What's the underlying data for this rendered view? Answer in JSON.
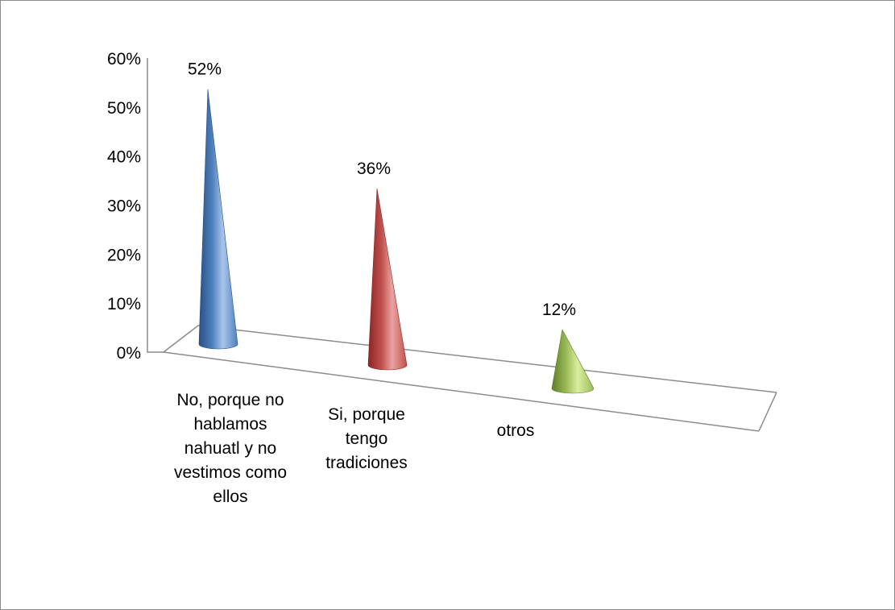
{
  "chart_data": {
    "type": "bar",
    "bar_shape": "cone",
    "three_d": true,
    "title": "",
    "xlabel": "",
    "ylabel": "",
    "ylim": [
      0,
      0.6
    ],
    "yticks": [
      0,
      0.1,
      0.2,
      0.3,
      0.4,
      0.5,
      0.6
    ],
    "ytick_labels": [
      "0%",
      "10%",
      "20%",
      "30%",
      "40%",
      "50%",
      "60%"
    ],
    "grid": false,
    "legend": "none",
    "categories": [
      [
        "No, porque no",
        "hablamos",
        "nahuatl y no",
        "vestimos como",
        "ellos"
      ],
      [
        "Si, porque",
        "tengo",
        "tradiciones"
      ],
      [
        "otros"
      ]
    ],
    "values": [
      0.52,
      0.36,
      0.12
    ],
    "data_labels": [
      "52%",
      "36%",
      "12%"
    ],
    "colors": {
      "bars": [
        "#4f81bd",
        "#c0504d",
        "#9bbb59"
      ],
      "bar_dark": [
        "#2a4f86",
        "#8a2624",
        "#5e7d28"
      ],
      "bar_light": [
        "#a9c4ea",
        "#eba3a1",
        "#d9ee9e"
      ],
      "axis": "#8c8c8c"
    }
  }
}
